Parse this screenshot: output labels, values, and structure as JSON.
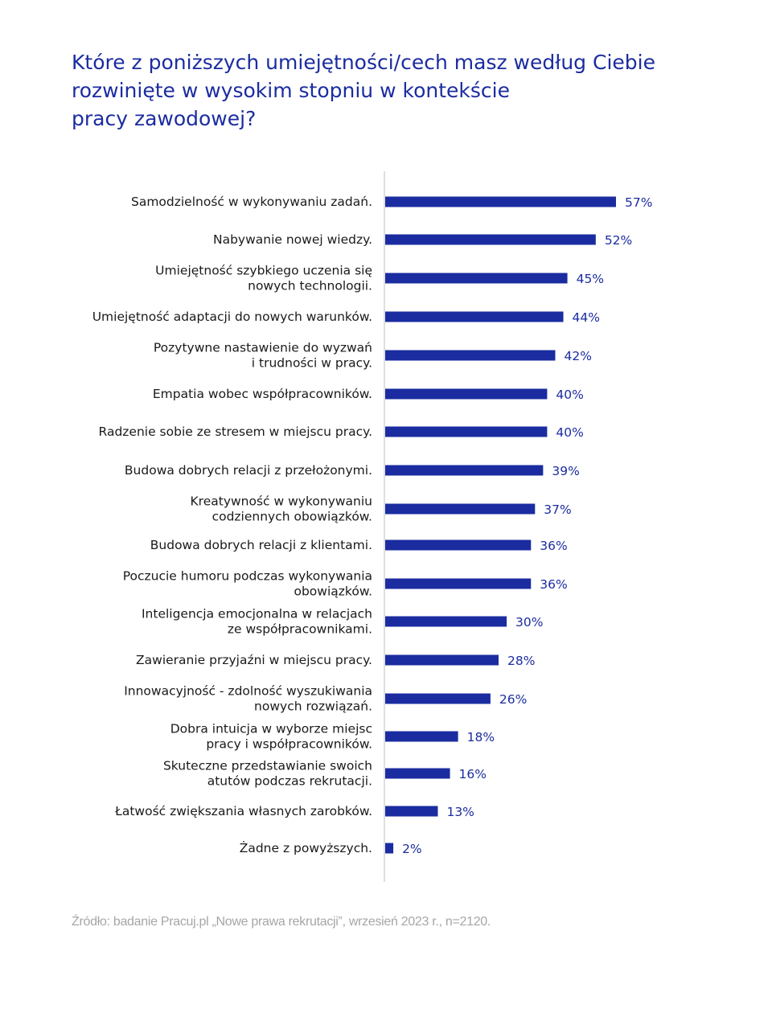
{
  "chart_data": {
    "type": "bar",
    "orientation": "horizontal",
    "title_lines": [
      "Które z poniższych umiejętności/cech masz według Ciebie",
      "rozwinięte w wysokim stopniu w kontekście",
      "pracy zawodowej?"
    ],
    "categories": [
      [
        "Samodzielność w wykonywaniu zadań."
      ],
      [
        "Nabywanie nowej wiedzy."
      ],
      [
        "Umiejętność szybkiego uczenia się",
        "nowych technologii."
      ],
      [
        "Umiejętność adaptacji do nowych warunków."
      ],
      [
        "Pozytywne nastawienie do wyzwań",
        "i trudności w pracy."
      ],
      [
        "Empatia wobec współpracowników."
      ],
      [
        "Radzenie sobie ze stresem w miejscu pracy."
      ],
      [
        "Budowa dobrych relacji z przełożonymi."
      ],
      [
        "Kreatywność w wykonywaniu",
        "codziennych obowiązków."
      ],
      [
        "Budowa dobrych relacji z klientami."
      ],
      [
        "Poczucie humoru podczas wykonywania",
        "obowiązków."
      ],
      [
        "Inteligencja emocjonalna w relacjach",
        "ze współpracownikami."
      ],
      [
        "Zawieranie przyjaźni w miejscu pracy."
      ],
      [
        "Innowacyjność - zdolność wyszukiwania",
        "nowych rozwiązań."
      ],
      [
        "Dobra intuicja w wyborze miejsc",
        "pracy i współpracowników."
      ],
      [
        "Skuteczne przedstawianie swoich",
        "atutów podczas rekrutacji."
      ],
      [
        "Łatwość zwiększania własnych zarobków."
      ],
      [
        "Żadne z powyższych."
      ]
    ],
    "values": [
      57,
      52,
      45,
      44,
      42,
      40,
      40,
      39,
      37,
      36,
      36,
      30,
      28,
      26,
      18,
      16,
      13,
      2
    ],
    "value_labels": [
      "57%",
      "52%",
      "45%",
      "44%",
      "42%",
      "40%",
      "40%",
      "39%",
      "37%",
      "36%",
      "36%",
      "30%",
      "28%",
      "26%",
      "18%",
      "16%",
      "13%",
      "2%"
    ],
    "xlim": [
      0,
      57
    ],
    "bar_color": "#1b2ca0",
    "label_color": "#1b2ca0",
    "axis_color": "#bfbfbf"
  },
  "source": "Źródło: badanie Pracuj.pl „Nowe prawa rekrutacji”, wrzesień 2023 r., n=2120."
}
